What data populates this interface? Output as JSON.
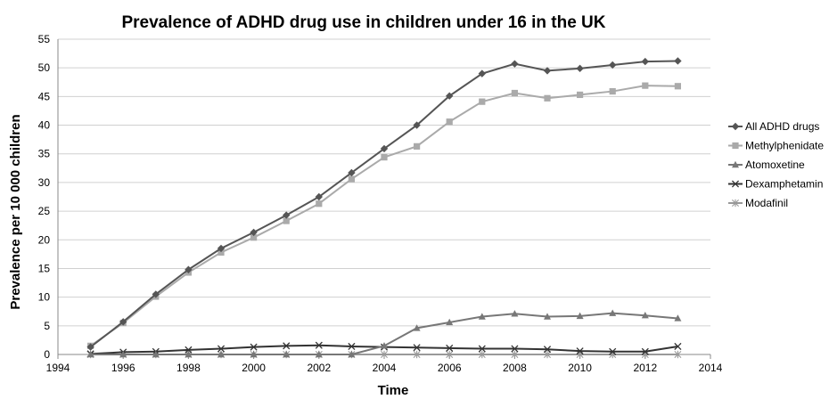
{
  "chart_data": {
    "type": "line",
    "title": "Prevalence of ADHD drug use in children under 16 in the UK",
    "xlabel": "Time",
    "ylabel": "Prevalence per 10 000 children",
    "xlim": [
      1994,
      2014
    ],
    "ylim": [
      0,
      55
    ],
    "x_ticks": [
      "1994",
      "1996",
      "1998",
      "2000",
      "2002",
      "2004",
      "2006",
      "2008",
      "2010",
      "2012",
      "2014"
    ],
    "y_ticks": [
      "0",
      "5",
      "10",
      "15",
      "20",
      "25",
      "30",
      "35",
      "40",
      "45",
      "50",
      "55"
    ],
    "grid": "horizontal",
    "legend_position": "right",
    "x": [
      1995,
      1996,
      1997,
      1998,
      1999,
      2000,
      2001,
      2002,
      2003,
      2004,
      2005,
      2006,
      2007,
      2008,
      2009,
      2010,
      2011,
      2012,
      2013
    ],
    "series": [
      {
        "name": "All ADHD drugs",
        "marker": "diamond",
        "color": "#555555",
        "values": [
          1.3,
          5.7,
          10.5,
          14.8,
          18.5,
          21.3,
          24.3,
          27.5,
          31.7,
          35.9,
          40.0,
          45.1,
          49.0,
          50.7,
          49.5,
          49.9,
          50.5,
          51.1,
          51.2
        ]
      },
      {
        "name": "Methylphenidate",
        "marker": "square",
        "color": "#aaaaaa",
        "values": [
          1.5,
          5.5,
          10.1,
          14.3,
          17.8,
          20.4,
          23.3,
          26.3,
          30.6,
          34.4,
          36.3,
          40.6,
          44.1,
          45.6,
          44.7,
          45.3,
          45.9,
          46.9,
          46.8
        ]
      },
      {
        "name": "Atomoxetine",
        "marker": "triangle",
        "color": "#777777",
        "values": [
          0,
          0,
          0,
          0,
          0,
          0,
          0,
          0,
          0,
          1.5,
          4.6,
          5.6,
          6.6,
          7.1,
          6.6,
          6.7,
          7.2,
          6.8,
          6.3
        ]
      },
      {
        "name": "Dexamphetamin",
        "marker": "x",
        "color": "#333333",
        "values": [
          0.1,
          0.4,
          0.5,
          0.8,
          1.0,
          1.3,
          1.5,
          1.6,
          1.4,
          1.3,
          1.2,
          1.1,
          1.0,
          1.0,
          0.9,
          0.6,
          0.5,
          0.5,
          1.4
        ]
      },
      {
        "name": "Modafinil",
        "marker": "star",
        "color": "#999999",
        "values": [
          0,
          0,
          0,
          0,
          0,
          0,
          0,
          0,
          0,
          0,
          0,
          0,
          0,
          0,
          0,
          0,
          0,
          0,
          0
        ]
      }
    ]
  }
}
